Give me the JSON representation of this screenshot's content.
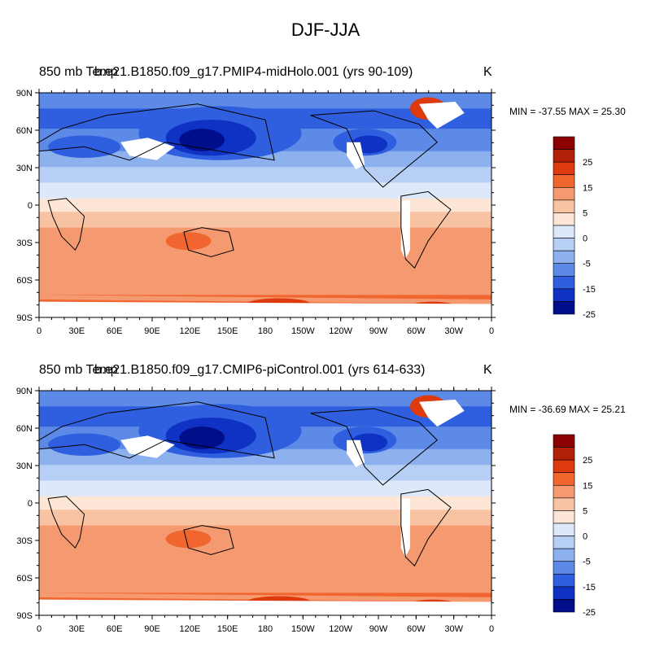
{
  "figure_title": "DJF-JJA",
  "panels": [
    {
      "left_title": "850 mb Temp",
      "case_title": "b.e21.B1850.f09_g17.PMIP4-midHolo.001 (yrs 90-109)",
      "units": "K",
      "minmax": "MIN = -37.55 MAX =  25.30"
    },
    {
      "left_title": "850 mb Temp",
      "case_title": "b.e21.B1850.f09_g17.CMIP6-piControl.001 (yrs 614-633)",
      "units": "K",
      "minmax": "MIN = -36.69 MAX =  25.21"
    }
  ],
  "lat_labels": [
    "90N",
    "60N",
    "30N",
    "0",
    "30S",
    "60S",
    "90S"
  ],
  "lon_labels": [
    "0",
    "30E",
    "60E",
    "90E",
    "120E",
    "150E",
    "180",
    "150W",
    "120W",
    "90W",
    "60W",
    "30W",
    "0"
  ],
  "colorbar": {
    "labels": [
      "25",
      "15",
      "5",
      "0",
      "-5",
      "-15",
      "-25"
    ],
    "colors": [
      "#8b0000",
      "#b3200a",
      "#dd3b0d",
      "#f0662e",
      "#f59a70",
      "#f8c3a3",
      "#fde6d6",
      "#dde9fb",
      "#b8cff5",
      "#8db1ef",
      "#5c8ae6",
      "#2f5fde",
      "#1032c4",
      "#000e8c"
    ]
  }
}
